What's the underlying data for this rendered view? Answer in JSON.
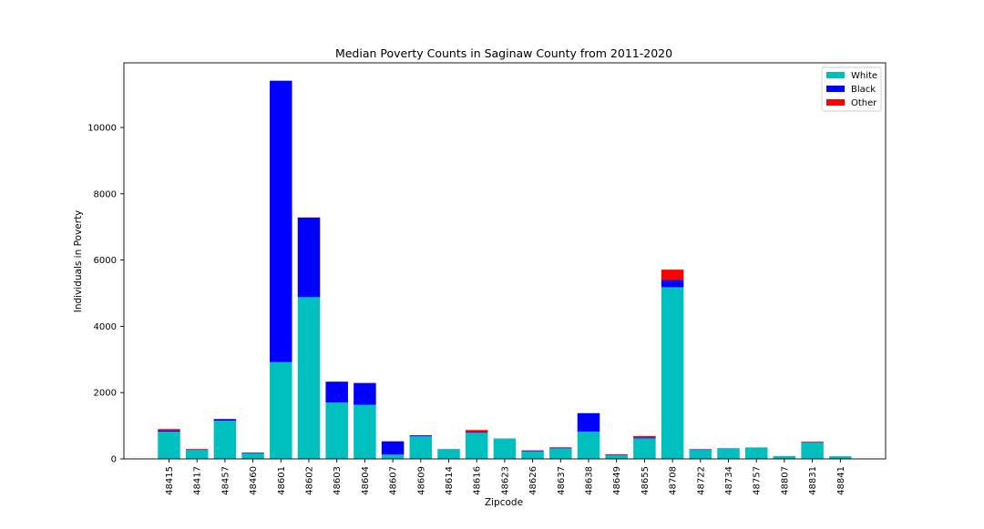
{
  "chart_data": {
    "type": "bar",
    "stacked": true,
    "title": "Median Poverty Counts in Saginaw County from 2011-2020",
    "xlabel": "Zipcode",
    "ylabel": "Individuals in Poverty",
    "ylim": [
      0,
      11950
    ],
    "yticks": [
      0,
      2000,
      4000,
      6000,
      8000,
      10000
    ],
    "grid": false,
    "legend_position": "top-right",
    "categories": [
      "48415",
      "48417",
      "48457",
      "48460",
      "48601",
      "48602",
      "48603",
      "48604",
      "48607",
      "48609",
      "48614",
      "48616",
      "48623",
      "48626",
      "48637",
      "48638",
      "48649",
      "48655",
      "48708",
      "48722",
      "48734",
      "48757",
      "48807",
      "48831",
      "48841"
    ],
    "series": [
      {
        "name": "White",
        "color": "#00bfbf",
        "values": [
          820,
          270,
          1150,
          170,
          2920,
          4880,
          1700,
          1630,
          130,
          680,
          290,
          790,
          610,
          230,
          320,
          820,
          110,
          620,
          5180,
          270,
          310,
          340,
          80,
          490,
          80
        ]
      },
      {
        "name": "Black",
        "color": "#0000ff",
        "values": [
          40,
          10,
          50,
          20,
          8490,
          2400,
          630,
          660,
          400,
          30,
          5,
          20,
          5,
          20,
          10,
          560,
          10,
          30,
          220,
          20,
          10,
          5,
          5,
          10,
          0
        ]
      },
      {
        "name": "Other",
        "color": "#ff0000",
        "values": [
          40,
          20,
          5,
          0,
          0,
          5,
          0,
          0,
          0,
          5,
          0,
          60,
          0,
          10,
          20,
          0,
          20,
          40,
          310,
          0,
          0,
          0,
          0,
          20,
          0
        ]
      }
    ]
  }
}
